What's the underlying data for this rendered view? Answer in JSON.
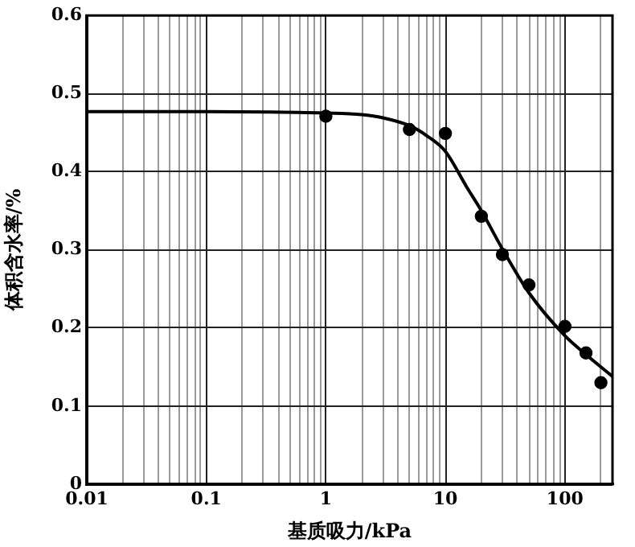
{
  "chart_data": {
    "type": "scatter",
    "xlabel": "基质吸力/kPa",
    "ylabel": "体积含水率/%",
    "log": "x",
    "grid": true,
    "legend": false,
    "xlim": [
      0.01,
      250
    ],
    "ylim": [
      0,
      0.6
    ],
    "xticks": [
      0.01,
      {
        "value": 0.02,
        "label": null
      },
      {
        "value": 0.03,
        "label": null
      },
      {
        "value": 0.04,
        "label": null
      },
      {
        "value": 0.05,
        "label": null
      },
      {
        "value": 0.06,
        "label": null
      },
      {
        "value": 0.07,
        "label": null
      },
      {
        "value": 0.08,
        "label": null
      },
      {
        "value": 0.09,
        "label": null
      },
      0.1,
      {
        "value": 0.2,
        "label": null
      },
      {
        "value": 0.3,
        "label": null
      },
      {
        "value": 0.4,
        "label": null
      },
      {
        "value": 0.5,
        "label": null
      },
      {
        "value": 0.6,
        "label": null
      },
      {
        "value": 0.7,
        "label": null
      },
      {
        "value": 0.8,
        "label": null
      },
      {
        "value": 0.9,
        "label": null
      },
      1,
      {
        "value": 2,
        "label": null
      },
      {
        "value": 3,
        "label": null
      },
      {
        "value": 4,
        "label": null
      },
      {
        "value": 5,
        "label": null
      },
      {
        "value": 6,
        "label": null
      },
      {
        "value": 7,
        "label": null
      },
      {
        "value": 8,
        "label": null
      },
      {
        "value": 9,
        "label": null
      },
      10,
      {
        "value": 20,
        "label": null
      },
      {
        "value": 30,
        "label": null
      },
      {
        "value": 40,
        "label": null
      },
      {
        "value": 50,
        "label": null
      },
      {
        "value": 60,
        "label": null
      },
      {
        "value": 70,
        "label": null
      },
      {
        "value": 80,
        "label": null
      },
      {
        "value": 90,
        "label": null
      },
      100,
      {
        "value": 200,
        "label": null
      }
    ],
    "yticks": [
      0,
      0.1,
      0.2,
      0.3,
      0.4,
      0.5,
      0.6
    ],
    "series": [
      {
        "type": "scatter",
        "color": "#000000",
        "marker": "circle",
        "x": [
          1,
          5,
          10,
          20,
          30,
          50,
          100,
          150,
          200
        ],
        "values": [
          0.471,
          0.454,
          0.449,
          0.343,
          0.294,
          0.255,
          0.202,
          0.168,
          0.13
        ]
      },
      {
        "type": "line",
        "color": "#000000",
        "marker": "none",
        "line_style": "solid",
        "x": [
          0.01,
          0.1,
          1,
          2,
          3,
          5,
          7,
          10,
          15,
          20,
          30,
          50,
          100,
          150,
          250
        ],
        "values": [
          0.477,
          0.477,
          0.475,
          0.473,
          0.469,
          0.459,
          0.446,
          0.426,
          0.381,
          0.35,
          0.301,
          0.245,
          0.19,
          0.166,
          0.138
        ]
      }
    ]
  }
}
